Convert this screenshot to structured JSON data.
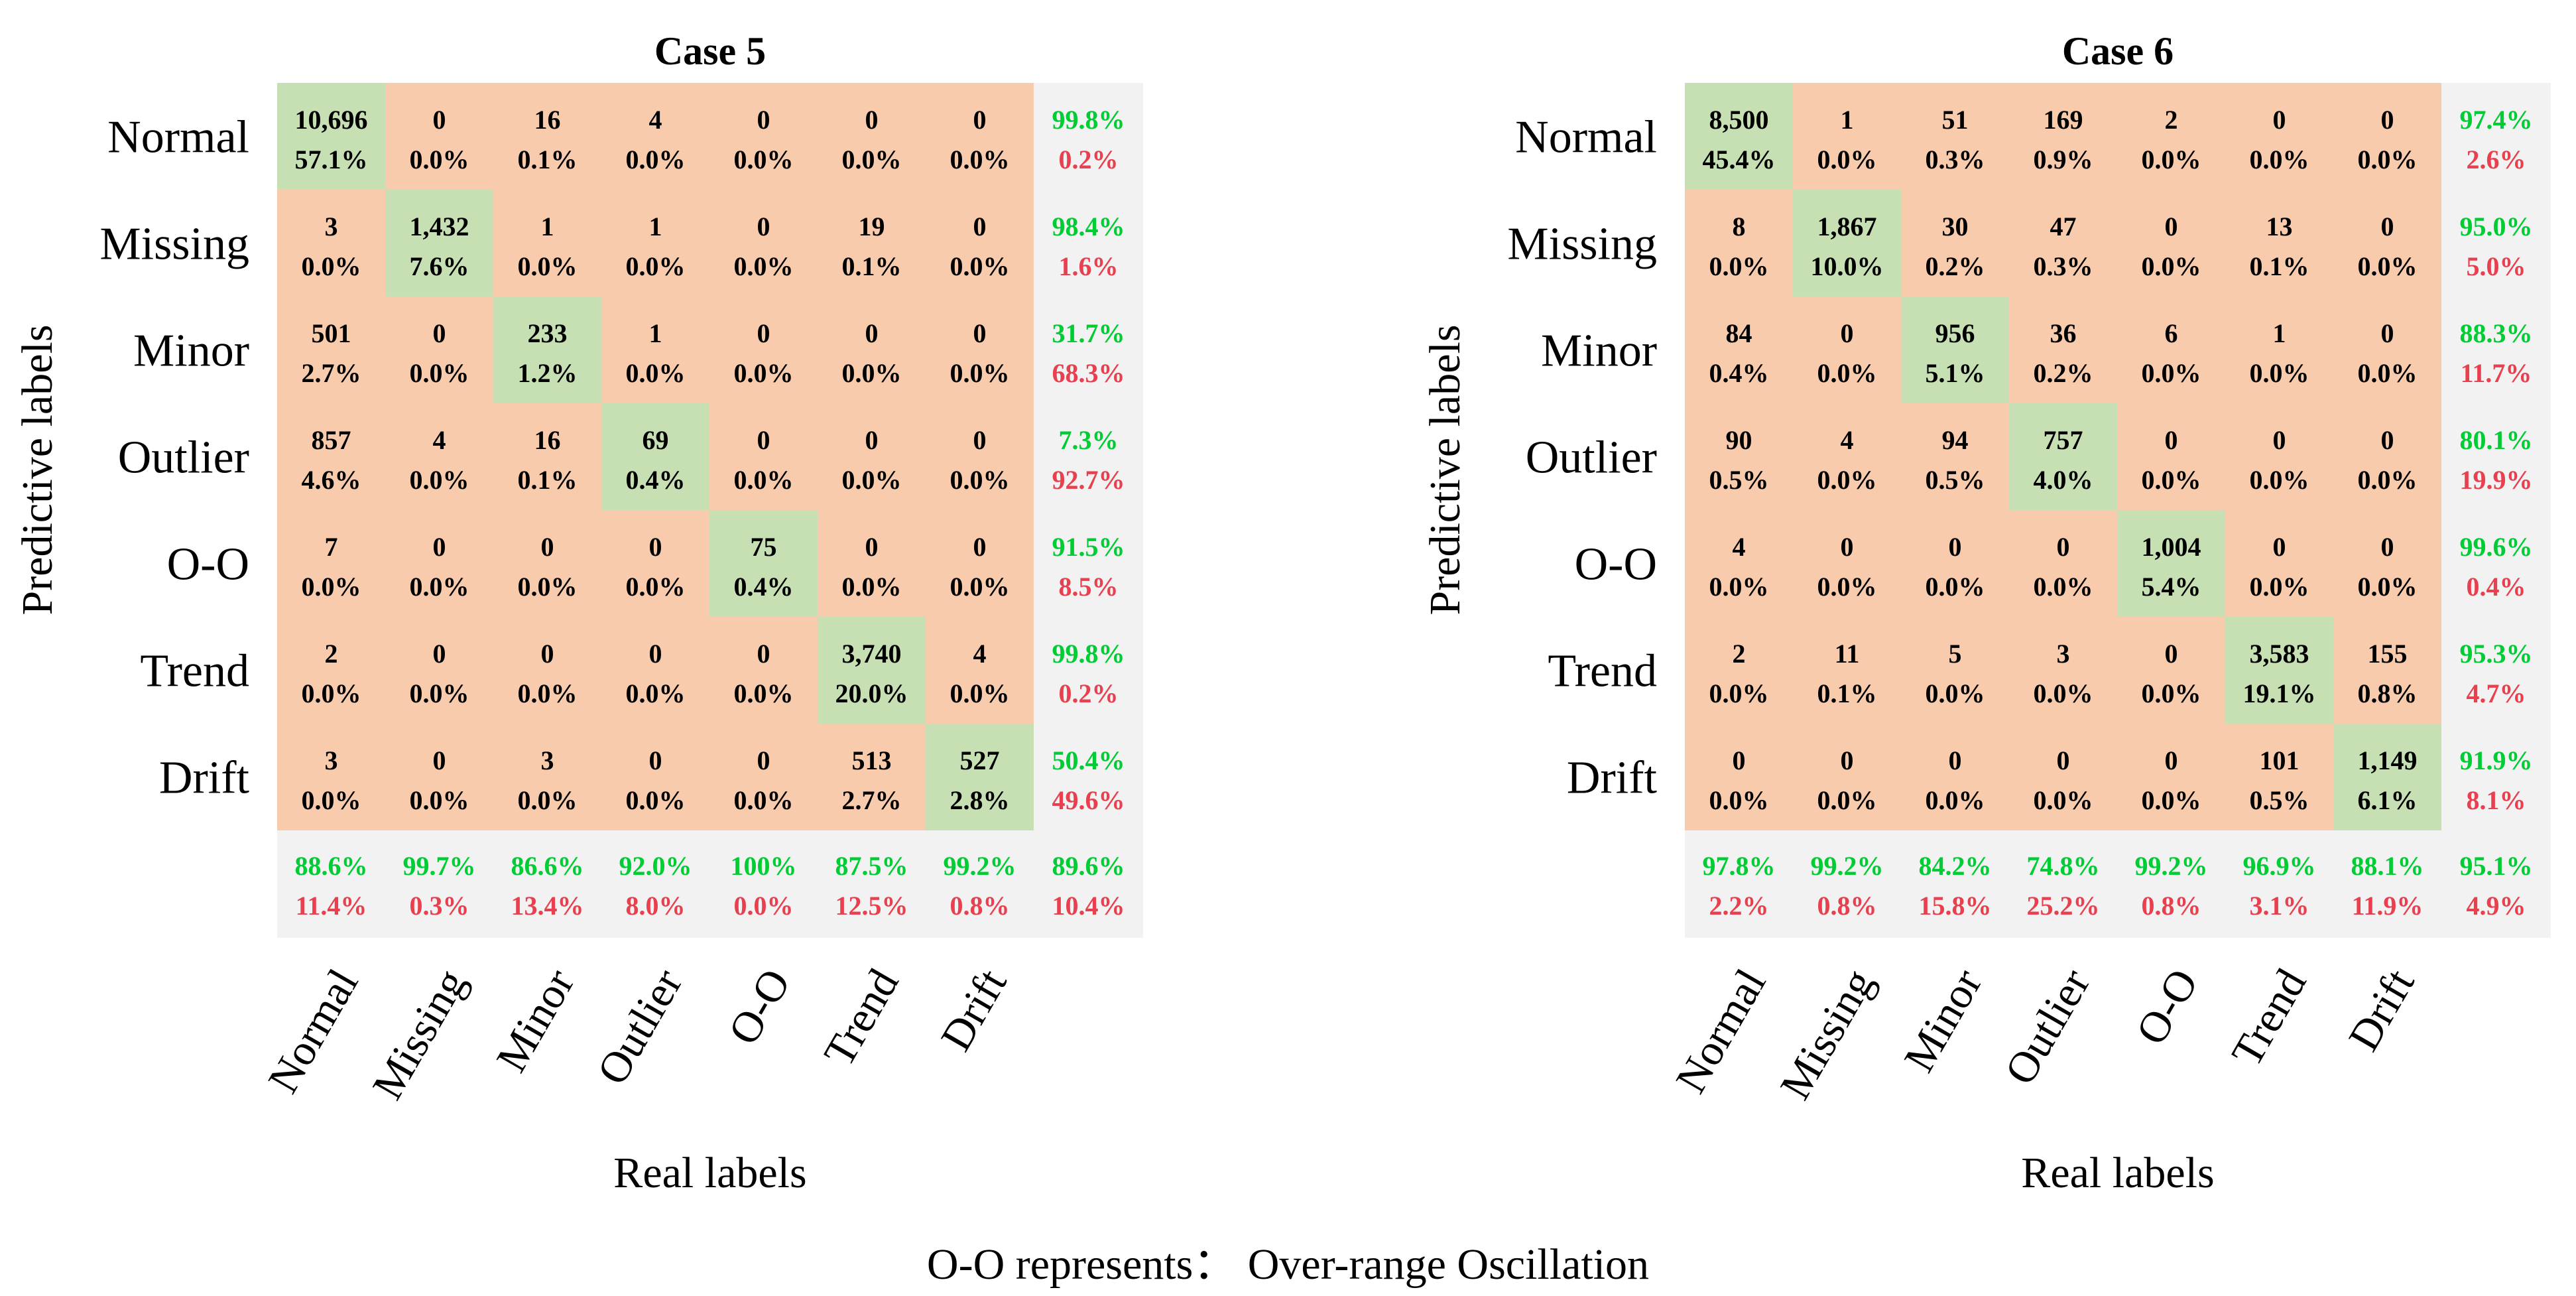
{
  "colors": {
    "correct_cell": "#c6e0b4",
    "wrong_cell": "#f8cbad",
    "summary_cell": "#f2f2f2",
    "summary_good": "#00cc33",
    "summary_bad": "#e8404f",
    "text": "#000000"
  },
  "chart_data": [
    {
      "type": "heatmap",
      "title": "Case 5",
      "xlabel": "Real labels",
      "ylabel": "Predictive labels",
      "row_labels": [
        "Normal",
        "Missing",
        "Minor",
        "Outlier",
        "O-O",
        "Trend",
        "Drift"
      ],
      "col_labels": [
        "Normal",
        "Missing",
        "Minor",
        "Outlier",
        "O-O",
        "Trend",
        "Drift"
      ],
      "counts": [
        [
          "10,696",
          "0",
          "16",
          "4",
          "0",
          "0",
          "0"
        ],
        [
          "3",
          "1,432",
          "1",
          "1",
          "0",
          "19",
          "0"
        ],
        [
          "501",
          "0",
          "233",
          "1",
          "0",
          "0",
          "0"
        ],
        [
          "857",
          "4",
          "16",
          "69",
          "0",
          "0",
          "0"
        ],
        [
          "7",
          "0",
          "0",
          "0",
          "75",
          "0",
          "0"
        ],
        [
          "2",
          "0",
          "0",
          "0",
          "0",
          "3,740",
          "4"
        ],
        [
          "3",
          "0",
          "3",
          "0",
          "0",
          "513",
          "527"
        ]
      ],
      "percents": [
        [
          "57.1%",
          "0.0%",
          "0.1%",
          "0.0%",
          "0.0%",
          "0.0%",
          "0.0%"
        ],
        [
          "0.0%",
          "7.6%",
          "0.0%",
          "0.0%",
          "0.0%",
          "0.1%",
          "0.0%"
        ],
        [
          "2.7%",
          "0.0%",
          "1.2%",
          "0.0%",
          "0.0%",
          "0.0%",
          "0.0%"
        ],
        [
          "4.6%",
          "0.0%",
          "0.1%",
          "0.4%",
          "0.0%",
          "0.0%",
          "0.0%"
        ],
        [
          "0.0%",
          "0.0%",
          "0.0%",
          "0.0%",
          "0.4%",
          "0.0%",
          "0.0%"
        ],
        [
          "0.0%",
          "0.0%",
          "0.0%",
          "0.0%",
          "0.0%",
          "20.0%",
          "0.0%"
        ],
        [
          "0.0%",
          "0.0%",
          "0.0%",
          "0.0%",
          "0.0%",
          "2.7%",
          "2.8%"
        ]
      ],
      "row_summary": [
        [
          "99.8%",
          "0.2%"
        ],
        [
          "98.4%",
          "1.6%"
        ],
        [
          "31.7%",
          "68.3%"
        ],
        [
          "7.3%",
          "92.7%"
        ],
        [
          "91.5%",
          "8.5%"
        ],
        [
          "99.8%",
          "0.2%"
        ],
        [
          "50.4%",
          "49.6%"
        ]
      ],
      "col_summary": [
        [
          "88.6%",
          "11.4%"
        ],
        [
          "99.7%",
          "0.3%"
        ],
        [
          "86.6%",
          "13.4%"
        ],
        [
          "92.0%",
          "8.0%"
        ],
        [
          "100%",
          "0.0%"
        ],
        [
          "87.5%",
          "12.5%"
        ],
        [
          "99.2%",
          "0.8%"
        ]
      ],
      "overall": [
        "89.6%",
        "10.4%"
      ]
    },
    {
      "type": "heatmap",
      "title": "Case 6",
      "xlabel": "Real labels",
      "ylabel": "Predictive labels",
      "row_labels": [
        "Normal",
        "Missing",
        "Minor",
        "Outlier",
        "O-O",
        "Trend",
        "Drift"
      ],
      "col_labels": [
        "Normal",
        "Missing",
        "Minor",
        "Outlier",
        "O-O",
        "Trend",
        "Drift"
      ],
      "counts": [
        [
          "8,500",
          "1",
          "51",
          "169",
          "2",
          "0",
          "0"
        ],
        [
          "8",
          "1,867",
          "30",
          "47",
          "0",
          "13",
          "0"
        ],
        [
          "84",
          "0",
          "956",
          "36",
          "6",
          "1",
          "0"
        ],
        [
          "90",
          "4",
          "94",
          "757",
          "0",
          "0",
          "0"
        ],
        [
          "4",
          "0",
          "0",
          "0",
          "1,004",
          "0",
          "0"
        ],
        [
          "2",
          "11",
          "5",
          "3",
          "0",
          "3,583",
          "155"
        ],
        [
          "0",
          "0",
          "0",
          "0",
          "0",
          "101",
          "1,149"
        ]
      ],
      "percents": [
        [
          "45.4%",
          "0.0%",
          "0.3%",
          "0.9%",
          "0.0%",
          "0.0%",
          "0.0%"
        ],
        [
          "0.0%",
          "10.0%",
          "0.2%",
          "0.3%",
          "0.0%",
          "0.1%",
          "0.0%"
        ],
        [
          "0.4%",
          "0.0%",
          "5.1%",
          "0.2%",
          "0.0%",
          "0.0%",
          "0.0%"
        ],
        [
          "0.5%",
          "0.0%",
          "0.5%",
          "4.0%",
          "0.0%",
          "0.0%",
          "0.0%"
        ],
        [
          "0.0%",
          "0.0%",
          "0.0%",
          "0.0%",
          "5.4%",
          "0.0%",
          "0.0%"
        ],
        [
          "0.0%",
          "0.1%",
          "0.0%",
          "0.0%",
          "0.0%",
          "19.1%",
          "0.8%"
        ],
        [
          "0.0%",
          "0.0%",
          "0.0%",
          "0.0%",
          "0.0%",
          "0.5%",
          "6.1%"
        ]
      ],
      "row_summary": [
        [
          "97.4%",
          "2.6%"
        ],
        [
          "95.0%",
          "5.0%"
        ],
        [
          "88.3%",
          "11.7%"
        ],
        [
          "80.1%",
          "19.9%"
        ],
        [
          "99.6%",
          "0.4%"
        ],
        [
          "95.3%",
          "4.7%"
        ],
        [
          "91.9%",
          "8.1%"
        ]
      ],
      "col_summary": [
        [
          "97.8%",
          "2.2%"
        ],
        [
          "99.2%",
          "0.8%"
        ],
        [
          "84.2%",
          "15.8%"
        ],
        [
          "74.8%",
          "25.2%"
        ],
        [
          "99.2%",
          "0.8%"
        ],
        [
          "96.9%",
          "3.1%"
        ],
        [
          "88.1%",
          "11.9%"
        ]
      ],
      "overall": [
        "95.1%",
        "4.9%"
      ]
    }
  ],
  "footnote": "O-O represents： Over-range Oscillation"
}
